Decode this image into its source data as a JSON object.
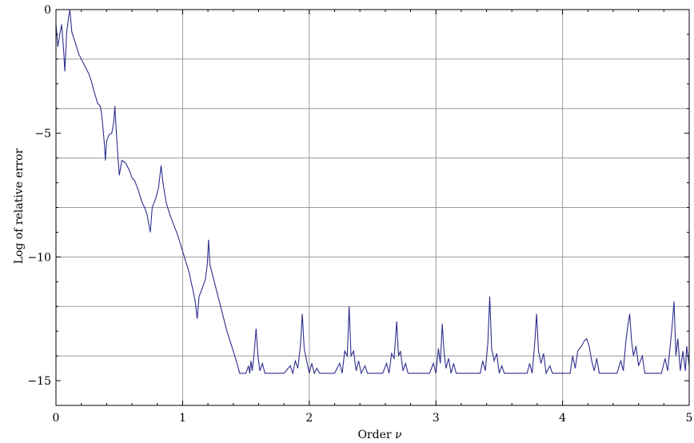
{
  "chart_data": {
    "type": "line",
    "title": "",
    "xlabel": "Order",
    "xlabel_symbol": "ν",
    "ylabel": "Log of relative error",
    "xlim": [
      0,
      5
    ],
    "ylim": [
      -16,
      0
    ],
    "grid": true,
    "x_gridlines": [
      1,
      2,
      3,
      4
    ],
    "y_gridlines": [
      -2,
      -4,
      -6,
      -8,
      -10,
      -12,
      -14
    ],
    "x_ticks": [
      0,
      1,
      2,
      3,
      4,
      5
    ],
    "y_ticks": [
      0,
      -5,
      -10,
      -15
    ],
    "x_tick_labels": [
      "0",
      "1",
      "2",
      "3",
      "4",
      "5"
    ],
    "y_tick_labels": [
      "0",
      "−5",
      "−10",
      "−15"
    ],
    "line_color": "#2e2e8f",
    "series": [
      {
        "values": [
          [
            0.0,
            -0.6
          ],
          [
            0.015,
            -1.5
          ],
          [
            0.03,
            -1.0
          ],
          [
            0.045,
            -0.6
          ],
          [
            0.06,
            -1.6
          ],
          [
            0.07,
            -2.5
          ],
          [
            0.085,
            -0.9
          ],
          [
            0.1,
            -0.3
          ],
          [
            0.11,
            0.0
          ],
          [
            0.125,
            -0.9
          ],
          [
            0.15,
            -1.3
          ],
          [
            0.18,
            -1.8
          ],
          [
            0.22,
            -2.2
          ],
          [
            0.26,
            -2.6
          ],
          [
            0.28,
            -2.9
          ],
          [
            0.3,
            -3.3
          ],
          [
            0.33,
            -3.8
          ],
          [
            0.35,
            -3.9
          ],
          [
            0.36,
            -4.2
          ],
          [
            0.37,
            -4.7
          ],
          [
            0.385,
            -5.6
          ],
          [
            0.39,
            -6.1
          ],
          [
            0.4,
            -5.3
          ],
          [
            0.42,
            -5.05
          ],
          [
            0.44,
            -5.0
          ],
          [
            0.455,
            -4.6
          ],
          [
            0.465,
            -3.9
          ],
          [
            0.475,
            -4.8
          ],
          [
            0.49,
            -6.0
          ],
          [
            0.5,
            -6.7
          ],
          [
            0.52,
            -6.1
          ],
          [
            0.55,
            -6.2
          ],
          [
            0.58,
            -6.5
          ],
          [
            0.6,
            -6.8
          ],
          [
            0.62,
            -6.9
          ],
          [
            0.65,
            -7.3
          ],
          [
            0.68,
            -7.8
          ],
          [
            0.7,
            -8.0
          ],
          [
            0.72,
            -8.3
          ],
          [
            0.73,
            -8.6
          ],
          [
            0.745,
            -9.0
          ],
          [
            0.76,
            -8.0
          ],
          [
            0.79,
            -7.6
          ],
          [
            0.81,
            -7.2
          ],
          [
            0.83,
            -6.3
          ],
          [
            0.845,
            -7.0
          ],
          [
            0.87,
            -7.8
          ],
          [
            0.9,
            -8.3
          ],
          [
            0.93,
            -8.7
          ],
          [
            0.96,
            -9.1
          ],
          [
            0.99,
            -9.6
          ],
          [
            1.02,
            -10.1
          ],
          [
            1.05,
            -10.6
          ],
          [
            1.08,
            -11.3
          ],
          [
            1.1,
            -11.8
          ],
          [
            1.115,
            -12.5
          ],
          [
            1.13,
            -11.6
          ],
          [
            1.16,
            -11.2
          ],
          [
            1.18,
            -10.9
          ],
          [
            1.195,
            -10.3
          ],
          [
            1.205,
            -9.3
          ],
          [
            1.215,
            -10.3
          ],
          [
            1.25,
            -11.0
          ],
          [
            1.3,
            -12.0
          ],
          [
            1.35,
            -13.0
          ],
          [
            1.4,
            -13.8
          ],
          [
            1.43,
            -14.3
          ],
          [
            1.45,
            -14.7
          ],
          [
            1.5,
            -14.7
          ],
          [
            1.52,
            -14.4
          ],
          [
            1.53,
            -14.7
          ],
          [
            1.54,
            -14.2
          ],
          [
            1.55,
            -14.6
          ],
          [
            1.565,
            -13.9
          ],
          [
            1.58,
            -12.9
          ],
          [
            1.595,
            -14.0
          ],
          [
            1.61,
            -14.6
          ],
          [
            1.63,
            -14.3
          ],
          [
            1.65,
            -14.7
          ],
          [
            1.8,
            -14.7
          ],
          [
            1.85,
            -14.4
          ],
          [
            1.87,
            -14.7
          ],
          [
            1.89,
            -14.2
          ],
          [
            1.91,
            -14.5
          ],
          [
            1.93,
            -13.6
          ],
          [
            1.945,
            -12.3
          ],
          [
            1.96,
            -13.7
          ],
          [
            1.98,
            -14.2
          ],
          [
            2.0,
            -14.7
          ],
          [
            2.02,
            -14.3
          ],
          [
            2.04,
            -14.7
          ],
          [
            2.06,
            -14.5
          ],
          [
            2.08,
            -14.7
          ],
          [
            2.2,
            -14.7
          ],
          [
            2.24,
            -14.3
          ],
          [
            2.26,
            -14.7
          ],
          [
            2.28,
            -13.8
          ],
          [
            2.3,
            -14.0
          ],
          [
            2.315,
            -12.0
          ],
          [
            2.33,
            -14.0
          ],
          [
            2.35,
            -13.8
          ],
          [
            2.37,
            -14.6
          ],
          [
            2.39,
            -14.2
          ],
          [
            2.41,
            -14.7
          ],
          [
            2.44,
            -14.4
          ],
          [
            2.46,
            -14.7
          ],
          [
            2.58,
            -14.7
          ],
          [
            2.61,
            -14.3
          ],
          [
            2.63,
            -14.7
          ],
          [
            2.65,
            -13.9
          ],
          [
            2.67,
            -14.1
          ],
          [
            2.69,
            -12.6
          ],
          [
            2.705,
            -14.0
          ],
          [
            2.72,
            -13.8
          ],
          [
            2.74,
            -14.6
          ],
          [
            2.76,
            -14.3
          ],
          [
            2.78,
            -14.7
          ],
          [
            2.95,
            -14.7
          ],
          [
            2.98,
            -14.3
          ],
          [
            3.0,
            -14.7
          ],
          [
            3.02,
            -13.7
          ],
          [
            3.035,
            -14.3
          ],
          [
            3.05,
            -12.7
          ],
          [
            3.065,
            -13.9
          ],
          [
            3.08,
            -14.5
          ],
          [
            3.1,
            -14.1
          ],
          [
            3.12,
            -14.7
          ],
          [
            3.14,
            -14.3
          ],
          [
            3.16,
            -14.7
          ],
          [
            3.35,
            -14.7
          ],
          [
            3.37,
            -14.2
          ],
          [
            3.39,
            -14.6
          ],
          [
            3.41,
            -13.5
          ],
          [
            3.425,
            -11.6
          ],
          [
            3.44,
            -13.7
          ],
          [
            3.46,
            -14.2
          ],
          [
            3.48,
            -13.9
          ],
          [
            3.5,
            -14.7
          ],
          [
            3.52,
            -14.4
          ],
          [
            3.54,
            -14.7
          ],
          [
            3.72,
            -14.7
          ],
          [
            3.74,
            -14.3
          ],
          [
            3.76,
            -14.7
          ],
          [
            3.78,
            -13.5
          ],
          [
            3.795,
            -12.3
          ],
          [
            3.81,
            -13.8
          ],
          [
            3.83,
            -14.3
          ],
          [
            3.85,
            -13.9
          ],
          [
            3.87,
            -14.7
          ],
          [
            3.9,
            -14.4
          ],
          [
            3.92,
            -14.7
          ],
          [
            4.06,
            -14.7
          ],
          [
            4.08,
            -14.0
          ],
          [
            4.1,
            -14.5
          ],
          [
            4.12,
            -13.8
          ],
          [
            4.15,
            -13.6
          ],
          [
            4.17,
            -13.4
          ],
          [
            4.19,
            -13.3
          ],
          [
            4.21,
            -13.6
          ],
          [
            4.23,
            -14.2
          ],
          [
            4.25,
            -14.6
          ],
          [
            4.27,
            -14.1
          ],
          [
            4.29,
            -14.7
          ],
          [
            4.43,
            -14.7
          ],
          [
            4.46,
            -14.2
          ],
          [
            4.48,
            -14.6
          ],
          [
            4.5,
            -13.4
          ],
          [
            4.515,
            -12.8
          ],
          [
            4.53,
            -12.3
          ],
          [
            4.545,
            -13.4
          ],
          [
            4.56,
            -14.0
          ],
          [
            4.58,
            -13.6
          ],
          [
            4.6,
            -14.4
          ],
          [
            4.63,
            -14.0
          ],
          [
            4.65,
            -14.7
          ],
          [
            4.78,
            -14.7
          ],
          [
            4.81,
            -14.1
          ],
          [
            4.83,
            -14.6
          ],
          [
            4.85,
            -13.6
          ],
          [
            4.865,
            -12.8
          ],
          [
            4.88,
            -11.8
          ],
          [
            4.895,
            -14.0
          ],
          [
            4.91,
            -13.3
          ],
          [
            4.93,
            -14.6
          ],
          [
            4.95,
            -13.8
          ],
          [
            4.97,
            -14.6
          ],
          [
            4.98,
            -13.6
          ],
          [
            5.0,
            -14.4
          ]
        ]
      }
    ]
  }
}
